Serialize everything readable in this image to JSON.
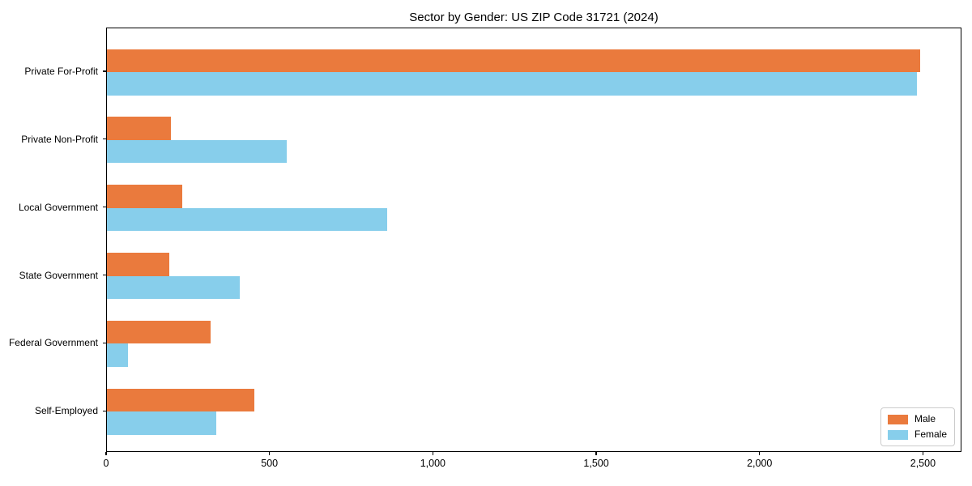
{
  "title": "Sector by Gender: US ZIP Code 31721 (2024)",
  "chart_data": {
    "type": "bar",
    "orientation": "horizontal",
    "title": "Sector by Gender: US ZIP Code 31721 (2024)",
    "xlabel": "",
    "ylabel": "",
    "categories": [
      "Private For-Profit",
      "Private Non-Profit",
      "Local Government",
      "State Government",
      "Federal Government",
      "Self-Employed"
    ],
    "series": [
      {
        "name": "Male",
        "color": "#ea7a3d",
        "values": [
          2490,
          195,
          230,
          192,
          318,
          450
        ]
      },
      {
        "name": "Female",
        "color": "#87ceeb",
        "values": [
          2480,
          550,
          858,
          407,
          64,
          335
        ]
      }
    ],
    "xlim": [
      0,
      2618
    ],
    "xticks": [
      0,
      500,
      1000,
      1500,
      2000,
      2500
    ],
    "xtick_labels": [
      "0",
      "500",
      "1,000",
      "1,500",
      "2,000",
      "2,500"
    ],
    "grid": false,
    "legend_position": "lower right"
  },
  "colors": {
    "male": "#ea7a3d",
    "female": "#87ceeb",
    "axis": "#000000",
    "background": "#ffffff",
    "legend_border": "#cccccc"
  }
}
